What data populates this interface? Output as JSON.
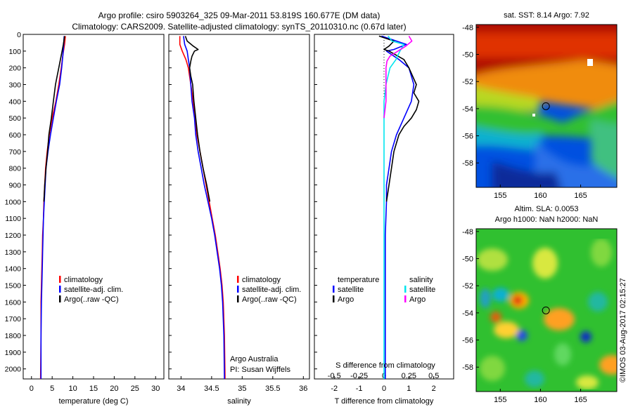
{
  "header": {
    "title_line1": "Argo profile: csiro 5903264_325 09-Mar-2011 53.819S 160.677E (DM data)",
    "title_line2": "Climatology: CARS2009. Satellite-adjusted climatology: synTS_20110310.nc (0.67d later)"
  },
  "depth_ticks": [
    "0",
    "100",
    "200",
    "300",
    "400",
    "500",
    "600",
    "700",
    "800",
    "900",
    "1000",
    "1100",
    "1200",
    "1300",
    "1400",
    "1500",
    "1600",
    "1700",
    "1800",
    "1900",
    "2000"
  ],
  "chart_data": [
    {
      "type": "line",
      "id": "temperature",
      "xlabel": "temperature (deg C)",
      "xlim": [
        -2,
        32
      ],
      "ylim": [
        0,
        2060
      ],
      "yreversed": true,
      "xticks": [
        "0",
        "5",
        "10",
        "15",
        "20",
        "25",
        "30"
      ],
      "legend": [
        "climatology",
        "satellite-adj. clim.",
        "Argo(..raw -QC)"
      ],
      "series": [
        {
          "name": "climatology",
          "color": "#ff0000",
          "points": [
            [
              8.2,
              10
            ],
            [
              8.0,
              60
            ],
            [
              7.6,
              120
            ],
            [
              7.2,
              200
            ],
            [
              6.6,
              300
            ],
            [
              5.9,
              400
            ],
            [
              5.0,
              500
            ],
            [
              4.3,
              600
            ],
            [
              3.8,
              700
            ],
            [
              3.4,
              800
            ],
            [
              3.2,
              900
            ],
            [
              3.0,
              1000
            ],
            [
              2.9,
              1100
            ],
            [
              2.7,
              1200
            ],
            [
              2.6,
              1300
            ],
            [
              2.5,
              1400
            ],
            [
              2.4,
              1500
            ],
            [
              2.3,
              1600
            ],
            [
              2.3,
              1800
            ],
            [
              2.2,
              2060
            ]
          ]
        },
        {
          "name": "satellite-adj. clim.",
          "color": "#0000ff",
          "points": [
            [
              7.9,
              10
            ],
            [
              7.8,
              60
            ],
            [
              7.6,
              120
            ],
            [
              7.3,
              200
            ],
            [
              6.8,
              300
            ],
            [
              6.0,
              400
            ],
            [
              5.3,
              500
            ],
            [
              4.6,
              600
            ],
            [
              4.0,
              700
            ],
            [
              3.5,
              800
            ],
            [
              3.3,
              900
            ],
            [
              3.1,
              1000
            ],
            [
              2.9,
              1100
            ],
            [
              2.8,
              1200
            ],
            [
              2.7,
              1300
            ],
            [
              2.6,
              1400
            ],
            [
              2.5,
              1500
            ],
            [
              2.4,
              1600
            ],
            [
              2.3,
              1800
            ],
            [
              2.3,
              2060
            ]
          ]
        },
        {
          "name": "Argo(..raw -QC)",
          "color": "#000000",
          "points": [
            [
              8.0,
              10
            ],
            [
              7.7,
              60
            ],
            [
              7.4,
              100
            ],
            [
              7.0,
              150
            ],
            [
              6.6,
              200
            ],
            [
              6.2,
              250
            ],
            [
              5.8,
              300
            ],
            [
              5.3,
              400
            ],
            [
              4.8,
              500
            ],
            [
              4.2,
              600
            ],
            [
              3.9,
              700
            ],
            [
              3.5,
              800
            ],
            [
              3.2,
              900
            ],
            [
              3.0,
              1000
            ]
          ]
        }
      ]
    },
    {
      "type": "line",
      "id": "salinity",
      "xlabel": "salinity",
      "xlim": [
        33.8,
        36.1
      ],
      "ylim": [
        0,
        2060
      ],
      "yreversed": true,
      "xticks": [
        "34",
        "34.5",
        "35",
        "35.5",
        "36"
      ],
      "legend": [
        "climatology",
        "satellite-adj. clim.",
        "Argo(..raw -QC)"
      ],
      "annotation": [
        "Argo Australia",
        "PI: Susan Wijffels"
      ],
      "series": [
        {
          "name": "climatology",
          "color": "#ff0000",
          "points": [
            [
              33.98,
              10
            ],
            [
              33.98,
              60
            ],
            [
              34.02,
              100
            ],
            [
              34.08,
              150
            ],
            [
              34.12,
              200
            ],
            [
              34.16,
              300
            ],
            [
              34.2,
              400
            ],
            [
              34.23,
              500
            ],
            [
              34.26,
              600
            ],
            [
              34.31,
              700
            ],
            [
              34.36,
              800
            ],
            [
              34.41,
              900
            ],
            [
              34.46,
              1000
            ],
            [
              34.51,
              1100
            ],
            [
              34.56,
              1200
            ],
            [
              34.6,
              1300
            ],
            [
              34.64,
              1400
            ],
            [
              34.67,
              1500
            ],
            [
              34.69,
              1600
            ],
            [
              34.71,
              1800
            ],
            [
              34.72,
              2060
            ]
          ]
        },
        {
          "name": "satellite-adj. clim.",
          "color": "#0000ff",
          "points": [
            [
              34.04,
              10
            ],
            [
              34.06,
              60
            ],
            [
              34.1,
              100
            ],
            [
              34.12,
              150
            ],
            [
              34.14,
              200
            ],
            [
              34.16,
              300
            ],
            [
              34.18,
              400
            ],
            [
              34.22,
              500
            ],
            [
              34.24,
              600
            ],
            [
              34.28,
              700
            ],
            [
              34.33,
              800
            ],
            [
              34.38,
              900
            ],
            [
              34.44,
              1000
            ],
            [
              34.5,
              1100
            ],
            [
              34.55,
              1200
            ],
            [
              34.59,
              1300
            ],
            [
              34.63,
              1400
            ],
            [
              34.66,
              1500
            ],
            [
              34.68,
              1600
            ],
            [
              34.7,
              1800
            ],
            [
              34.71,
              2060
            ]
          ]
        },
        {
          "name": "Argo(..raw -QC)",
          "color": "#000000",
          "points": [
            [
              34.07,
              10
            ],
            [
              34.1,
              40
            ],
            [
              34.2,
              70
            ],
            [
              34.28,
              90
            ],
            [
              34.22,
              100
            ],
            [
              34.18,
              130
            ],
            [
              34.16,
              160
            ],
            [
              34.14,
              200
            ],
            [
              34.16,
              250
            ],
            [
              34.19,
              300
            ],
            [
              34.21,
              400
            ],
            [
              34.24,
              500
            ],
            [
              34.27,
              600
            ],
            [
              34.31,
              700
            ],
            [
              34.36,
              800
            ],
            [
              34.42,
              900
            ],
            [
              34.47,
              1000
            ]
          ]
        }
      ]
    },
    {
      "type": "line",
      "id": "difference",
      "xlabel": "T difference from climatology",
      "xlabel_top": "S difference from climatology",
      "xlim_T": [
        -2.8,
        2.8
      ],
      "xlim_S": [
        -0.7,
        0.7
      ],
      "ylim": [
        0,
        2060
      ],
      "yreversed": true,
      "xticks_T": [
        "-2",
        "-1",
        "0",
        "1",
        "2"
      ],
      "xticks_S": [
        "-0.5",
        "-0.25",
        "0",
        "0.25",
        "0.5"
      ],
      "legend": {
        "temperature_heading": "temperature",
        "salinity_heading": "salinity",
        "items": [
          "satellite",
          "Argo",
          "satellite",
          "Argo"
        ]
      },
      "series": [
        {
          "name": "satellite",
          "group": "temperature",
          "color": "#0000ff",
          "axis": "T",
          "points": [
            [
              -0.1,
              10
            ],
            [
              0.5,
              40
            ],
            [
              0.9,
              60
            ],
            [
              0.4,
              90
            ],
            [
              0.1,
              100
            ],
            [
              0.6,
              150
            ],
            [
              1.0,
              200
            ],
            [
              1.2,
              300
            ],
            [
              1.1,
              400
            ],
            [
              0.8,
              500
            ],
            [
              0.5,
              600
            ],
            [
              0.3,
              700
            ],
            [
              0.2,
              800
            ],
            [
              0.1,
              900
            ],
            [
              0.1,
              1000
            ],
            [
              0.05,
              1200
            ],
            [
              0.05,
              1500
            ],
            [
              0.05,
              1800
            ],
            [
              0.05,
              2060
            ]
          ]
        },
        {
          "name": "Argo",
          "group": "temperature",
          "color": "#000000",
          "axis": "T",
          "points": [
            [
              -0.2,
              10
            ],
            [
              0.4,
              40
            ],
            [
              0.2,
              70
            ],
            [
              0.0,
              90
            ],
            [
              0.2,
              100
            ],
            [
              0.8,
              150
            ],
            [
              1.0,
              200
            ],
            [
              1.3,
              300
            ],
            [
              1.2,
              350
            ],
            [
              1.4,
              400
            ],
            [
              1.3,
              450
            ],
            [
              1.1,
              500
            ],
            [
              0.8,
              550
            ],
            [
              0.6,
              600
            ],
            [
              0.4,
              700
            ],
            [
              0.3,
              800
            ],
            [
              0.2,
              900
            ],
            [
              0.1,
              1000
            ]
          ]
        },
        {
          "name": "satellite",
          "group": "salinity",
          "color": "#00e5ee",
          "axis": "S",
          "points": [
            [
              0.04,
              10
            ],
            [
              0.08,
              40
            ],
            [
              0.2,
              60
            ],
            [
              0.16,
              100
            ],
            [
              0.12,
              150
            ],
            [
              0.06,
              200
            ],
            [
              0.02,
              300
            ],
            [
              0.0,
              400
            ],
            [
              0.0,
              500
            ],
            [
              0.0,
              600
            ],
            [
              0.0,
              800
            ],
            [
              0.0,
              1000
            ],
            [
              0.0,
              1200
            ],
            [
              0.0,
              1500
            ],
            [
              0.0,
              1800
            ],
            [
              0.0,
              2060
            ]
          ]
        },
        {
          "name": "Argo",
          "group": "salinity",
          "color": "#ff00ff",
          "axis": "S",
          "points": [
            [
              0.25,
              10
            ],
            [
              0.28,
              40
            ],
            [
              0.22,
              70
            ],
            [
              0.14,
              100
            ],
            [
              0.06,
              130
            ],
            [
              0.03,
              160
            ],
            [
              0.02,
              200
            ],
            [
              0.02,
              300
            ],
            [
              0.02,
              400
            ],
            [
              0.0,
              500
            ]
          ]
        }
      ]
    }
  ],
  "maps": [
    {
      "id": "sst-map",
      "title": "sat. SST: 8.14 Argo: 7.92",
      "subtitle": "",
      "lon_ticks": [
        "155",
        "160",
        "165"
      ],
      "lat_ticks": [
        "-48",
        "-50",
        "-52",
        "-54",
        "-56",
        "-58"
      ],
      "lon_range": [
        152,
        169.5
      ],
      "lat_range": [
        -59.8,
        -47.8
      ],
      "marker": [
        160.677,
        -53.819
      ],
      "field": "sst"
    },
    {
      "id": "sla-map",
      "title": "Altim. SLA: 0.0053",
      "subtitle": "Argo h1000: NaN h2000: NaN",
      "lon_ticks": [
        "155",
        "160",
        "165"
      ],
      "lat_ticks": [
        "-48",
        "-50",
        "-52",
        "-54",
        "-56",
        "-58"
      ],
      "lon_range": [
        152,
        169.5
      ],
      "lat_range": [
        -59.8,
        -47.8
      ],
      "marker": [
        160.677,
        -53.819
      ],
      "field": "sla"
    }
  ],
  "footer": {
    "credit": "©IMOS 03-Aug-2017 02:15:27"
  }
}
